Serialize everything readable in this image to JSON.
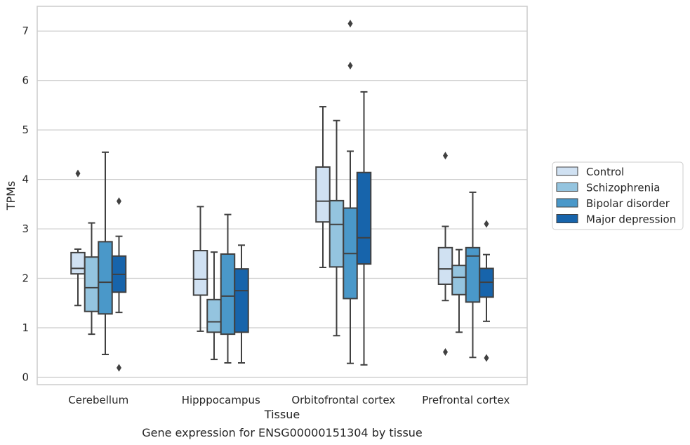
{
  "chart_data": {
    "type": "box",
    "xlabel": "Tissue",
    "ylabel": "TPMs",
    "caption": "Gene expression for ENSG00000151304 by tissue",
    "ylim": [
      -0.15,
      7.5
    ],
    "yticks": [
      "0",
      "1",
      "2",
      "3",
      "4",
      "5",
      "6",
      "7"
    ],
    "grid": true,
    "legend_position": "right",
    "categories": [
      "Cerebellum",
      "Hipppocampus",
      "Orbitofrontal cortex",
      "Prefrontal cortex"
    ],
    "series": [
      {
        "name": "Control",
        "color": "#d0e1f2",
        "boxes": [
          {
            "whislo": 1.45,
            "q1": 2.09,
            "med": 2.2,
            "q3": 2.52,
            "whishi": 2.59,
            "fliers": [
              4.12
            ]
          },
          {
            "whislo": 0.93,
            "q1": 1.66,
            "med": 1.98,
            "q3": 2.56,
            "whishi": 3.45,
            "fliers": []
          },
          {
            "whislo": 2.22,
            "q1": 3.14,
            "med": 3.56,
            "q3": 4.25,
            "whishi": 5.47,
            "fliers": []
          },
          {
            "whislo": 1.55,
            "q1": 1.88,
            "med": 2.19,
            "q3": 2.62,
            "whishi": 3.05,
            "fliers": [
              0.51,
              4.48
            ]
          }
        ]
      },
      {
        "name": "Schizophrenia",
        "color": "#94c4df",
        "boxes": [
          {
            "whislo": 0.87,
            "q1": 1.33,
            "med": 1.81,
            "q3": 2.43,
            "whishi": 3.12,
            "fliers": []
          },
          {
            "whislo": 0.36,
            "q1": 0.91,
            "med": 1.12,
            "q3": 1.57,
            "whishi": 2.53,
            "fliers": []
          },
          {
            "whislo": 0.84,
            "q1": 2.23,
            "med": 3.09,
            "q3": 3.57,
            "whishi": 5.19,
            "fliers": []
          },
          {
            "whislo": 0.91,
            "q1": 1.67,
            "med": 2.02,
            "q3": 2.26,
            "whishi": 2.58,
            "fliers": []
          }
        ]
      },
      {
        "name": "Bipolar disorder",
        "color": "#4a98c9",
        "boxes": [
          {
            "whislo": 0.46,
            "q1": 1.28,
            "med": 1.92,
            "q3": 2.74,
            "whishi": 4.55,
            "fliers": []
          },
          {
            "whislo": 0.29,
            "q1": 0.87,
            "med": 1.64,
            "q3": 2.49,
            "whishi": 3.29,
            "fliers": []
          },
          {
            "whislo": 0.28,
            "q1": 1.59,
            "med": 2.5,
            "q3": 3.42,
            "whishi": 4.57,
            "fliers": [
              6.3,
              7.15
            ]
          },
          {
            "whislo": 0.4,
            "q1": 1.52,
            "med": 2.45,
            "q3": 2.62,
            "whishi": 3.74,
            "fliers": []
          }
        ]
      },
      {
        "name": "Major depression",
        "color": "#1764ab",
        "boxes": [
          {
            "whislo": 1.31,
            "q1": 1.72,
            "med": 2.08,
            "q3": 2.45,
            "whishi": 2.85,
            "fliers": [
              0.19,
              3.56
            ]
          },
          {
            "whislo": 0.29,
            "q1": 0.91,
            "med": 1.75,
            "q3": 2.19,
            "whishi": 2.67,
            "fliers": []
          },
          {
            "whislo": 0.25,
            "q1": 2.29,
            "med": 2.82,
            "q3": 4.14,
            "whishi": 5.77,
            "fliers": []
          },
          {
            "whislo": 1.13,
            "q1": 1.62,
            "med": 1.92,
            "q3": 2.2,
            "whishi": 2.48,
            "fliers": [
              0.39,
              3.1
            ]
          }
        ]
      }
    ]
  }
}
